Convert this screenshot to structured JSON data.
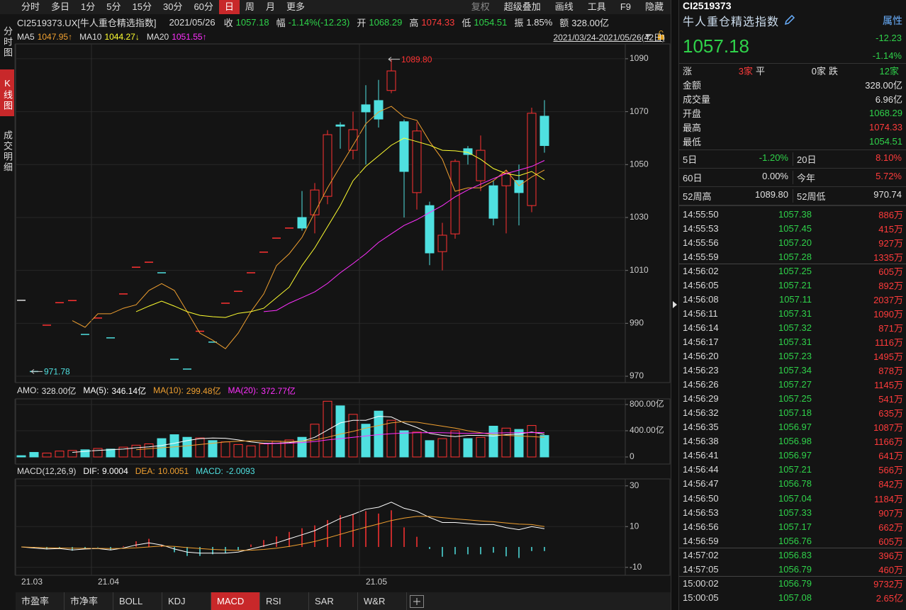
{
  "toolbar": {
    "periods": [
      "分时",
      "多日",
      "1分",
      "5分",
      "15分",
      "30分",
      "60分",
      "日",
      "周",
      "月",
      "更多"
    ],
    "active": 7,
    "tools": [
      "复权",
      "超级叠加",
      "画线",
      "工具",
      "F9",
      "隐藏"
    ]
  },
  "side_tabs": {
    "tabs": [
      "分时图",
      "K线图",
      "成交明细"
    ],
    "active": 1
  },
  "info": {
    "symbol": "CI2519373.UX[牛人重仓精选指数]",
    "date": "2021/05/26",
    "fields": [
      {
        "label": "收",
        "value": "1057.18",
        "color": "#2fd24a"
      },
      {
        "label": "幅",
        "value": "-1.14%(-12.23)",
        "color": "#2fd24a"
      },
      {
        "label": "开",
        "value": "1068.29",
        "color": "#2fd24a"
      },
      {
        "label": "高",
        "value": "1074.33",
        "color": "#ff3b3b"
      },
      {
        "label": "低",
        "value": "1054.51",
        "color": "#2fd24a"
      },
      {
        "label": "振",
        "value": "1.85%",
        "color": "#e0e0e0"
      },
      {
        "label": "额",
        "value": "328.00亿",
        "color": "#e0e0e0"
      }
    ]
  },
  "range": "2021/03/24-2021/05/26(42日)",
  "chart_data": [
    {
      "type": "candlestick",
      "open": [
        998.7,
        971.78,
        989.3,
        997.8,
        998.6,
        985.8,
        992,
        984.5,
        1001.1,
        1011.2,
        1013.1,
        1009.1,
        976.4,
        972.7,
        987,
        982.9,
        997.6,
        1002.1,
        1009.1,
        1016.9,
        1022.2,
        1026,
        1030,
        1031,
        1038,
        1065,
        1055.4,
        1072.6,
        1074.2,
        1078,
        1066.2,
        1039.4,
        1034.5,
        1017.1,
        1023.8,
        1056,
        1043.9,
        1042,
        1042,
        1044,
        1034.5,
        1068.29
      ],
      "high": [
        998.7,
        971.78,
        989.3,
        997.8,
        998.6,
        985.8,
        992,
        984.5,
        1001.1,
        1011.2,
        1013.1,
        1009.1,
        976.4,
        972.7,
        987,
        982.9,
        997.6,
        1002.1,
        1009.1,
        1016.9,
        1022.2,
        1026,
        1040,
        1043,
        1063,
        1066,
        1070,
        1080,
        1082,
        1089.8,
        1067,
        1066,
        1036,
        1028,
        1052,
        1057,
        1061,
        1044,
        1048,
        1050,
        1071.5,
        1074.33
      ],
      "low": [
        998.7,
        971.78,
        989.3,
        997.8,
        998.6,
        985.8,
        992,
        984.5,
        1001.1,
        1011.2,
        1013.1,
        1009.1,
        976.4,
        972.7,
        987,
        982.9,
        997.6,
        1002.1,
        1009.1,
        1016.9,
        1022.2,
        1026,
        1025,
        1024,
        1035,
        1056,
        1052,
        1050,
        1064,
        1077,
        1030,
        1033,
        1012,
        1010,
        1022,
        1050,
        1040,
        1027,
        1024,
        1027,
        1032,
        1054.51
      ],
      "close": [
        998.7,
        971.78,
        989.3,
        997.8,
        998.6,
        985.8,
        992,
        984.5,
        1001.1,
        1011.2,
        1013.1,
        1009.1,
        976.4,
        972.7,
        987,
        982.9,
        997.6,
        1002.1,
        1009.1,
        1016.9,
        1022.2,
        1026,
        1026,
        1040.4,
        1061.3,
        1064.5,
        1063.2,
        1069.9,
        1067.2,
        1085.4,
        1047.4,
        1062.7,
        1016.6,
        1023.3,
        1051.2,
        1053.8,
        1055.4,
        1029.7,
        1046.6,
        1039.4,
        1069.4,
        1057.18
      ],
      "up_color": "#ff3232",
      "down_color": "#4fe0e0",
      "flat_color": "#e0e0e0",
      "series": [
        {
          "name": "MA5",
          "value_label": "1047.95↑",
          "color": "#f0a030",
          "values": [
            null,
            null,
            null,
            null,
            991,
            988.5,
            993.6,
            993.6,
            995.7,
            997,
            1002.4,
            1005,
            1002.4,
            994.4,
            986.3,
            983.6,
            980.4,
            986.3,
            994.4,
            1001.1,
            1011.8,
            1016.3,
            1022.5,
            1031.9,
            1041.2,
            1049.3,
            1057.3,
            1065.4,
            1069.9,
            1072,
            1068,
            1066.7,
            1058.7,
            1052,
            1039.9,
            1041.2,
            1041.2,
            1043.9,
            1047.9,
            1042,
            1045.3,
            1047.95
          ]
        },
        {
          "name": "MA10",
          "value_label": "1044.27↓",
          "color": "#ffff30",
          "values": [
            null,
            null,
            null,
            null,
            null,
            null,
            null,
            null,
            null,
            994.4,
            996.5,
            998.4,
            996.5,
            994.4,
            993,
            992.5,
            992.2,
            993.8,
            994.4,
            995.7,
            999.7,
            1003.7,
            1011.8,
            1018.5,
            1026.5,
            1034.5,
            1043.9,
            1049.3,
            1053.3,
            1057.3,
            1060,
            1058.7,
            1057.3,
            1055.4,
            1055.2,
            1054.6,
            1052,
            1048.5,
            1046.6,
            1045.8,
            1047.4,
            1044.27
          ]
        },
        {
          "name": "MA20",
          "value_label": "1051.55↑",
          "color": "#ff30ff",
          "values": [
            null,
            null,
            null,
            null,
            null,
            null,
            null,
            null,
            null,
            null,
            null,
            null,
            null,
            null,
            null,
            null,
            null,
            null,
            null,
            994.4,
            994.9,
            997.6,
            999.7,
            1001.9,
            1005.1,
            1009.1,
            1012.6,
            1016.3,
            1020.6,
            1023.8,
            1027,
            1029.2,
            1031.9,
            1034.5,
            1037.8,
            1040.4,
            1042.6,
            1044.7,
            1046.6,
            1047.9,
            1049.3,
            1051.55
          ]
        }
      ],
      "annotations": [
        {
          "text": "1089.80",
          "value": 1089.8,
          "color": "#ff3232"
        },
        {
          "text": "971.78",
          "value": 971.78,
          "color": "#4fe0e0"
        }
      ],
      "ylim": [
        967.6,
        1095.6
      ],
      "yticks": [
        970,
        990,
        1010,
        1030,
        1050,
        1070,
        1090
      ],
      "grid": true
    },
    {
      "type": "volume",
      "title": "AMO:",
      "value_label": "328.00亿",
      "color": "#e0e0e0",
      "values": [
        20,
        70,
        60,
        90,
        100,
        110,
        130,
        120,
        150,
        180,
        200,
        280,
        340,
        300,
        290,
        250,
        230,
        190,
        170,
        200,
        240,
        260,
        300,
        500,
        850,
        780,
        650,
        500,
        700,
        560,
        400,
        380,
        250,
        280,
        400,
        280,
        300,
        470,
        440,
        420,
        480,
        328
      ],
      "series": [
        {
          "name": "MA(5):",
          "value_label": "346.14亿",
          "color": "#ffffff",
          "values": [
            null,
            null,
            null,
            null,
            70,
            85,
            100,
            110,
            120,
            140,
            155,
            175,
            210,
            250,
            280,
            290,
            285,
            260,
            230,
            210,
            210,
            220,
            240,
            300,
            410,
            520,
            560,
            560,
            620,
            610,
            520,
            450,
            360,
            330,
            310,
            330,
            330,
            320,
            340,
            350,
            380,
            346.14
          ]
        },
        {
          "name": "MA(10):",
          "value_label": "299.48亿",
          "color": "#f0a030",
          "values": [
            null,
            null,
            null,
            null,
            null,
            null,
            null,
            null,
            null,
            110,
            125,
            140,
            155,
            170,
            190,
            210,
            230,
            240,
            245,
            245,
            240,
            235,
            240,
            260,
            300,
            350,
            390,
            440,
            480,
            520,
            540,
            530,
            500,
            470,
            440,
            400,
            370,
            340,
            330,
            320,
            310,
            299.48
          ]
        },
        {
          "name": "MA(20):",
          "value_label": "372.77亿",
          "color": "#ff30ff",
          "values": [
            null,
            null,
            null,
            null,
            null,
            null,
            null,
            null,
            null,
            null,
            null,
            null,
            null,
            null,
            null,
            null,
            null,
            null,
            null,
            200,
            205,
            210,
            220,
            235,
            260,
            280,
            300,
            320,
            340,
            355,
            365,
            370,
            372,
            370,
            365,
            360,
            362,
            365,
            368,
            370,
            372,
            372.77
          ]
        }
      ],
      "ylim": [
        -108,
        886
      ],
      "yticks": [
        0,
        {
          "value": 400,
          "label": "400.00亿"
        },
        {
          "value": 800,
          "label": "800.00亿"
        }
      ],
      "grid": true
    },
    {
      "type": "macd",
      "title": "MACD(12,26,9)",
      "categories": [
        "21.03",
        null,
        null,
        null,
        null,
        null,
        "21.04",
        null,
        null,
        null,
        null,
        null,
        null,
        null,
        null,
        null,
        null,
        null,
        null,
        null,
        null,
        null,
        null,
        null,
        null,
        null,
        null,
        "21.05",
        null,
        null,
        null,
        null,
        null,
        null,
        null,
        null,
        null,
        null,
        null,
        null,
        null,
        null
      ],
      "series": [
        {
          "name": "DIF:",
          "color": "#ffffff",
          "values": [
            0,
            -0.5,
            -1,
            -0.8,
            -1.5,
            -1,
            -0.8,
            -1.5,
            -0.5,
            1,
            2,
            1,
            -1,
            -2.5,
            -3,
            -3,
            -3,
            -2.5,
            -1,
            0.5,
            2,
            4,
            6,
            8,
            11,
            14,
            16,
            18.5,
            19.5,
            22,
            19,
            17.5,
            14.5,
            12,
            12,
            11.5,
            11,
            11,
            9.5,
            8.5,
            10,
            9.0004
          ]
        },
        {
          "name": "DEA:",
          "color": "#f0a030",
          "values": [
            0,
            -0.2,
            -0.4,
            -0.5,
            -0.6,
            -0.7,
            -0.7,
            -0.8,
            -0.7,
            -0.4,
            0,
            0.5,
            0.3,
            -0.3,
            -0.8,
            -1.2,
            -1.5,
            -1.7,
            -1.6,
            -1.2,
            -0.6,
            0.3,
            1.4,
            2.7,
            4.4,
            6.2,
            8,
            9.7,
            11.3,
            13,
            14.2,
            15,
            15,
            14.4,
            13.8,
            13.3,
            12.8,
            12.4,
            11.8,
            11.2,
            11,
            10.0051
          ]
        },
        {
          "name": "MACD:",
          "type": "bar",
          "up_color": "#ff3232",
          "down_color": "#4fe0e0",
          "values": [
            0,
            -0.6,
            -1.2,
            -0.6,
            -1.8,
            -0.6,
            -0.2,
            -1.4,
            0.4,
            2.8,
            4,
            1,
            -2.6,
            -4.4,
            -4.4,
            -3.6,
            -3,
            -1.6,
            1.2,
            3.4,
            5.2,
            7.4,
            9.2,
            10.6,
            13.2,
            15.6,
            16,
            17.6,
            16.4,
            18,
            9.6,
            5,
            -1,
            -4.8,
            -3.6,
            -3.6,
            -3.6,
            -2.8,
            -4.6,
            -5.4,
            -2,
            -2.0093
          ]
        }
      ],
      "ylim": [
        -13.9,
        33.4
      ],
      "yticks": [
        -10,
        10,
        30
      ],
      "grid": true
    }
  ],
  "indicator_tabs": {
    "tabs": [
      "市盈率",
      "市净率",
      "BOLL",
      "KDJ",
      "MACD",
      "RSI",
      "SAR",
      "W&R"
    ],
    "active": 4
  },
  "quote": {
    "code": "CI2519373",
    "name": "牛人重仓精选指数",
    "attr": "属性",
    "price": "1057.18",
    "change": "-12.23",
    "change_pct": "-1.14%"
  },
  "breadth": [
    {
      "label": "涨",
      "value": "3家",
      "color": "#ff3b3b"
    },
    {
      "label": "平",
      "value": "0家",
      "color": "#e0e0e0"
    },
    {
      "label": "跌",
      "value": "12家",
      "color": "#2fd24a"
    }
  ],
  "stats": [
    {
      "label": "金额",
      "value": "328.00亿",
      "color": "#e0e0e0"
    },
    {
      "label": "成交量",
      "value": "6.96亿",
      "color": "#e0e0e0"
    },
    {
      "label": "开盘",
      "value": "1068.29",
      "color": "#2fd24a"
    },
    {
      "label": "最高",
      "value": "1074.33",
      "color": "#ff3b3b"
    },
    {
      "label": "最低",
      "value": "1054.51",
      "color": "#2fd24a"
    }
  ],
  "performance": [
    [
      {
        "label": "5日",
        "value": "-1.20%",
        "color": "#2fd24a"
      },
      {
        "label": "20日",
        "value": "8.10%",
        "color": "#ff3b3b"
      }
    ],
    [
      {
        "label": "60日",
        "value": "0.00%",
        "color": "#e0e0e0"
      },
      {
        "label": "今年",
        "value": "5.72%",
        "color": "#ff3b3b"
      }
    ],
    [
      {
        "label": "52周高",
        "value": "1089.80",
        "color": "#e0e0e0"
      },
      {
        "label": "52周低",
        "value": "970.74",
        "color": "#e0e0e0"
      }
    ]
  ],
  "trades": [
    [
      "14:55:50",
      "1057.38",
      "886万"
    ],
    [
      "14:55:53",
      "1057.45",
      "415万"
    ],
    [
      "14:55:56",
      "1057.20",
      "927万"
    ],
    [
      "14:55:59",
      "1057.28",
      "1335万"
    ],
    [
      "14:56:02",
      "1057.25",
      "605万"
    ],
    [
      "14:56:05",
      "1057.21",
      "892万"
    ],
    [
      "14:56:08",
      "1057.11",
      "2037万"
    ],
    [
      "14:56:11",
      "1057.31",
      "1090万"
    ],
    [
      "14:56:14",
      "1057.32",
      "871万"
    ],
    [
      "14:56:17",
      "1057.31",
      "1116万"
    ],
    [
      "14:56:20",
      "1057.23",
      "1495万"
    ],
    [
      "14:56:23",
      "1057.34",
      "878万"
    ],
    [
      "14:56:26",
      "1057.27",
      "1145万"
    ],
    [
      "14:56:29",
      "1057.25",
      "541万"
    ],
    [
      "14:56:32",
      "1057.18",
      "635万"
    ],
    [
      "14:56:35",
      "1056.97",
      "1087万"
    ],
    [
      "14:56:38",
      "1056.98",
      "1166万"
    ],
    [
      "14:56:41",
      "1056.97",
      "641万"
    ],
    [
      "14:56:44",
      "1057.21",
      "566万"
    ],
    [
      "14:56:47",
      "1056.78",
      "842万"
    ],
    [
      "14:56:50",
      "1057.04",
      "1184万"
    ],
    [
      "14:56:53",
      "1057.33",
      "907万"
    ],
    [
      "14:56:56",
      "1057.17",
      "662万"
    ],
    [
      "14:56:59",
      "1056.76",
      "605万"
    ],
    [
      "14:57:02",
      "1056.83",
      "396万"
    ],
    [
      "14:57:05",
      "1056.79",
      "460万"
    ],
    [
      "15:00:02",
      "1056.79",
      "9732万"
    ],
    [
      "15:00:05",
      "1057.08",
      "2.65亿"
    ]
  ]
}
